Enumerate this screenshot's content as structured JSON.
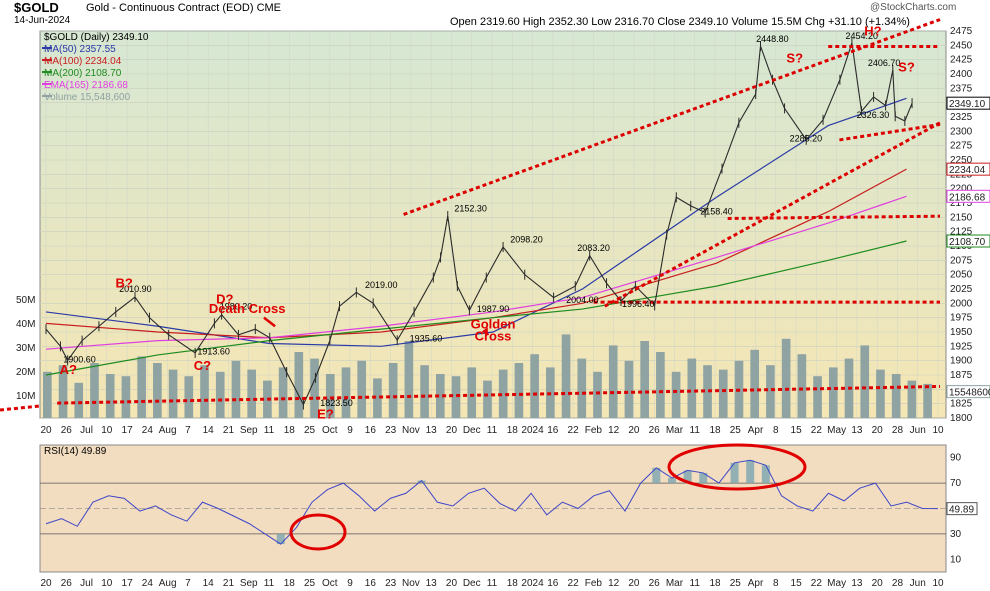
{
  "header": {
    "ticker": "$GOLD",
    "description": "Gold - Continuous Contract (EOD) CME",
    "date": "14-Jun-2024",
    "ohlc": "Open 2319.60  High 2352.30  Low 2316.70  Close 2349.10  Volume 15.5M  Chg +31.10 (+1.34%)",
    "credit": "@StockCharts.com"
  },
  "colors": {
    "price_bg_top": "#d6e7d3",
    "price_bg_bottom": "#f5e6b4",
    "rsi_bg": "#f3ddc0",
    "candle": "#2a2a2a",
    "volume": "#8fa3a3",
    "ma50": "#2a3aa6",
    "ma100": "#c81e1e",
    "ma200": "#1e8c1e",
    "ema165": "#e040e0",
    "trendline": "#dd0000",
    "rsi_line": "#3d46c8",
    "rsi_fill": "#7aa6b0"
  },
  "chart_data": [
    {
      "type": "line",
      "title": "$GOLD (Daily) 2349.10",
      "ylim": [
        1800,
        2475
      ],
      "y_ticks": [
        1800,
        1825,
        1850,
        1875,
        1900,
        1925,
        1950,
        1975,
        2000,
        2025,
        2050,
        2075,
        2100,
        2125,
        2150,
        2175,
        2200,
        2225,
        2250,
        2275,
        2300,
        2325,
        2350,
        2375,
        2400,
        2425,
        2450,
        2475
      ],
      "x_tick_labels": [
        "20",
        "26",
        "Jul",
        "10",
        "17",
        "24",
        "Aug",
        "7",
        "14",
        "21",
        "Sep",
        "11",
        "18",
        "25",
        "Oct",
        "9",
        "16",
        "23",
        "Nov",
        "13",
        "20",
        "Dec",
        "11",
        "18",
        "2024",
        "16",
        "22",
        "Feb",
        "12",
        "20",
        "26",
        "Mar",
        "11",
        "18",
        "25",
        "Apr",
        "8",
        "15",
        "22",
        "May",
        "13",
        "20",
        "28",
        "Jun",
        "10"
      ],
      "volume_labels": [
        "50M",
        "40M",
        "30M",
        "20M",
        "10M"
      ],
      "legend": [
        {
          "name": "$GOLD (Daily) 2349.10",
          "color": "#000000"
        },
        {
          "name": "MA(50) 2357.55",
          "color": "#2a3aa6"
        },
        {
          "name": "MA(100) 2234.04",
          "color": "#c81e1e"
        },
        {
          "name": "MA(200) 2108.70",
          "color": "#1e8c1e"
        },
        {
          "name": "EMA(165) 2186.68",
          "color": "#e040e0"
        },
        {
          "name": "Volume 15,548,600",
          "color": "#8fa3a3"
        }
      ],
      "right_tags": [
        {
          "value": 2349.1,
          "label": "2349.10",
          "color": "#000000"
        },
        {
          "value": 2234.04,
          "label": "2234.04",
          "color": "#c81e1e"
        },
        {
          "value": 2186.68,
          "label": "2186.68",
          "color": "#e040e0"
        },
        {
          "value": 2108.7,
          "label": "2108.70",
          "color": "#1e8c1e"
        },
        {
          "value": 1846,
          "label": "15548600",
          "color": "#8fa3a3"
        }
      ],
      "price_series": [
        {
          "date": "2023-06-20",
          "close": 1955
        },
        {
          "date": "2023-06-26",
          "close": 1925
        },
        {
          "date": "2023-06-29",
          "close": 1900.6
        },
        {
          "date": "2023-07-05",
          "close": 1935
        },
        {
          "date": "2023-07-12",
          "close": 1960
        },
        {
          "date": "2023-07-19",
          "close": 1985
        },
        {
          "date": "2023-07-27",
          "close": 2010.9
        },
        {
          "date": "2023-08-02",
          "close": 1975
        },
        {
          "date": "2023-08-10",
          "close": 1945
        },
        {
          "date": "2023-08-21",
          "close": 1913.6
        },
        {
          "date": "2023-08-29",
          "close": 1965
        },
        {
          "date": "2023-09-01",
          "close": 1980.2
        },
        {
          "date": "2023-09-08",
          "close": 1945
        },
        {
          "date": "2023-09-15",
          "close": 1955
        },
        {
          "date": "2023-09-21",
          "close": 1940
        },
        {
          "date": "2023-09-28",
          "close": 1880
        },
        {
          "date": "2023-10-05",
          "close": 1823.5
        },
        {
          "date": "2023-10-10",
          "close": 1870
        },
        {
          "date": "2023-10-16",
          "close": 1935
        },
        {
          "date": "2023-10-20",
          "close": 1995
        },
        {
          "date": "2023-10-27",
          "close": 2019.0
        },
        {
          "date": "2023-11-03",
          "close": 2000
        },
        {
          "date": "2023-11-13",
          "close": 1935.6
        },
        {
          "date": "2023-11-20",
          "close": 1985
        },
        {
          "date": "2023-11-28",
          "close": 2045
        },
        {
          "date": "2023-12-01",
          "close": 2080
        },
        {
          "date": "2023-12-04",
          "close": 2152.3
        },
        {
          "date": "2023-12-08",
          "close": 2030
        },
        {
          "date": "2023-12-13",
          "close": 1987.9
        },
        {
          "date": "2023-12-20",
          "close": 2045
        },
        {
          "date": "2023-12-27",
          "close": 2098.2
        },
        {
          "date": "2024-01-05",
          "close": 2050
        },
        {
          "date": "2024-01-17",
          "close": 2010
        },
        {
          "date": "2024-01-26",
          "close": 2030
        },
        {
          "date": "2024-02-01",
          "close": 2083.2
        },
        {
          "date": "2024-02-08",
          "close": 2035
        },
        {
          "date": "2024-02-14",
          "close": 2004.0
        },
        {
          "date": "2024-02-20",
          "close": 2030
        },
        {
          "date": "2024-02-28",
          "close": 1996.4
        },
        {
          "date": "2024-03-04",
          "close": 2120
        },
        {
          "date": "2024-03-08",
          "close": 2185
        },
        {
          "date": "2024-03-14",
          "close": 2170
        },
        {
          "date": "2024-03-20",
          "close": 2158.4
        },
        {
          "date": "2024-03-27",
          "close": 2235
        },
        {
          "date": "2024-04-03",
          "close": 2315
        },
        {
          "date": "2024-04-10",
          "close": 2365
        },
        {
          "date": "2024-04-12",
          "close": 2448.8
        },
        {
          "date": "2024-04-17",
          "close": 2390
        },
        {
          "date": "2024-04-22",
          "close": 2340
        },
        {
          "date": "2024-05-01",
          "close": 2285.2
        },
        {
          "date": "2024-05-08",
          "close": 2320
        },
        {
          "date": "2024-05-15",
          "close": 2390
        },
        {
          "date": "2024-05-20",
          "close": 2454.2
        },
        {
          "date": "2024-05-24",
          "close": 2335
        },
        {
          "date": "2024-05-29",
          "close": 2360
        },
        {
          "date": "2024-06-03",
          "close": 2345
        },
        {
          "date": "2024-06-06",
          "close": 2406.7
        },
        {
          "date": "2024-06-07",
          "close": 2326.3
        },
        {
          "date": "2024-06-11",
          "close": 2318
        },
        {
          "date": "2024-06-14",
          "close": 2349.1
        }
      ],
      "moving_averages": {
        "MA(50)": [
          [
            0,
            1985
          ],
          [
            10,
            1960
          ],
          [
            20,
            1930
          ],
          [
            30,
            1925
          ],
          [
            40,
            1950
          ],
          [
            48,
            2025
          ],
          [
            60,
            2185
          ],
          [
            70,
            2310
          ],
          [
            77,
            2357.55
          ]
        ],
        "MA(100)": [
          [
            0,
            1965
          ],
          [
            10,
            1950
          ],
          [
            20,
            1940
          ],
          [
            30,
            1950
          ],
          [
            40,
            1975
          ],
          [
            48,
            2000
          ],
          [
            60,
            2070
          ],
          [
            70,
            2160
          ],
          [
            77,
            2234.04
          ]
        ],
        "MA(200)": [
          [
            0,
            1875
          ],
          [
            10,
            1910
          ],
          [
            20,
            1935
          ],
          [
            30,
            1955
          ],
          [
            40,
            1975
          ],
          [
            48,
            1990
          ],
          [
            60,
            2030
          ],
          [
            70,
            2075
          ],
          [
            77,
            2108.7
          ]
        ],
        "EMA(165)": [
          [
            0,
            1920
          ],
          [
            10,
            1935
          ],
          [
            20,
            1940
          ],
          [
            30,
            1960
          ],
          [
            40,
            1985
          ],
          [
            48,
            2010
          ],
          [
            60,
            2080
          ],
          [
            70,
            2140
          ],
          [
            77,
            2186.68
          ]
        ]
      },
      "volume_series_millions": [
        21,
        24,
        16,
        25,
        20,
        19,
        28,
        25,
        22,
        19,
        24,
        21,
        26,
        22,
        17,
        23,
        30,
        27,
        20,
        23,
        26,
        18,
        25,
        35,
        24,
        20,
        19,
        23,
        17,
        22,
        25,
        29,
        23,
        38,
        27,
        21,
        33,
        26,
        35,
        30,
        21,
        27,
        24,
        22,
        26,
        31,
        24,
        36,
        29,
        19,
        23,
        27,
        33,
        22,
        20,
        17,
        15.5
      ],
      "rsi": {
        "label": "RSI(14) 49.89",
        "ylim": [
          0,
          100
        ],
        "y_ticks": [
          10,
          30,
          50,
          70,
          90
        ],
        "upper": 70,
        "lower": 30,
        "values": [
          38,
          42,
          36,
          55,
          60,
          58,
          48,
          52,
          45,
          40,
          55,
          50,
          44,
          38,
          30,
          22,
          35,
          55,
          65,
          70,
          60,
          48,
          58,
          62,
          72,
          55,
          52,
          62,
          66,
          54,
          48,
          62,
          45,
          55,
          50,
          60,
          64,
          48,
          70,
          82,
          74,
          80,
          78,
          70,
          86,
          88,
          84,
          60,
          52,
          48,
          62,
          56,
          66,
          70,
          52,
          55,
          50,
          49.89
        ]
      },
      "trendlines": [
        {
          "from": [
            1,
            1826
          ],
          "to": [
            80,
            1855
          ]
        },
        {
          "from": [
            49,
            2002
          ],
          "to": [
            80,
            2002
          ]
        },
        {
          "from": [
            61,
            2148
          ],
          "to": [
            80,
            2152
          ]
        },
        {
          "from": [
            32,
            2155
          ],
          "to": [
            80,
            2495
          ]
        },
        {
          "from": [
            50,
            1995
          ],
          "to": [
            80,
            2315
          ]
        },
        {
          "from": [
            70,
            2448
          ],
          "to": [
            80,
            2448
          ]
        },
        {
          "from": [
            71,
            2285
          ],
          "to": [
            80,
            2312
          ]
        }
      ],
      "price_notes": [
        {
          "text": "1900.60",
          "i": 3,
          "v": 1897
        },
        {
          "text": "2010.90",
          "i": 8,
          "v": 2020
        },
        {
          "text": "1913.60",
          "i": 15,
          "v": 1911
        },
        {
          "text": "1980.20",
          "i": 17,
          "v": 1989
        },
        {
          "text": "1823.50",
          "i": 26,
          "v": 1821
        },
        {
          "text": "2019.00",
          "i": 30,
          "v": 2027
        },
        {
          "text": "1935.60",
          "i": 34,
          "v": 1933
        },
        {
          "text": "2152.30",
          "i": 38,
          "v": 2160
        },
        {
          "text": "1987.90",
          "i": 40,
          "v": 1985
        },
        {
          "text": "2098.20",
          "i": 43,
          "v": 2106
        },
        {
          "text": "2083.20",
          "i": 49,
          "v": 2091
        },
        {
          "text": "2004.00",
          "i": 48,
          "v": 2001
        },
        {
          "text": "1996.40",
          "i": 53,
          "v": 1994
        },
        {
          "text": "2158.40",
          "i": 60,
          "v": 2155
        },
        {
          "text": "2448.80",
          "i": 65,
          "v": 2456
        },
        {
          "text": "2285.20",
          "i": 68,
          "v": 2282
        },
        {
          "text": "2454.20",
          "i": 73,
          "v": 2461
        },
        {
          "text": "2406.70",
          "i": 75,
          "v": 2414
        },
        {
          "text": "2326.30",
          "i": 74,
          "v": 2323
        }
      ],
      "annotations": [
        {
          "text": "A?",
          "i": 2,
          "v": 1877
        },
        {
          "text": "B?",
          "i": 7,
          "v": 2028
        },
        {
          "text": "C?",
          "i": 14,
          "v": 1884
        },
        {
          "text": "D?",
          "i": 16,
          "v": 2000
        },
        {
          "text": "E?",
          "i": 25,
          "v": 1799
        },
        {
          "text": "Death Cross",
          "i": 18,
          "v": 1983
        },
        {
          "text": "Golden",
          "i": 40,
          "v": 1956
        },
        {
          "text": "Cross",
          "i": 40,
          "v": 1935
        },
        {
          "text": "S?",
          "i": 67,
          "v": 2420
        },
        {
          "text": "H?",
          "i": 74,
          "v": 2467
        },
        {
          "text": "S?",
          "i": 77,
          "v": 2404
        }
      ]
    }
  ]
}
